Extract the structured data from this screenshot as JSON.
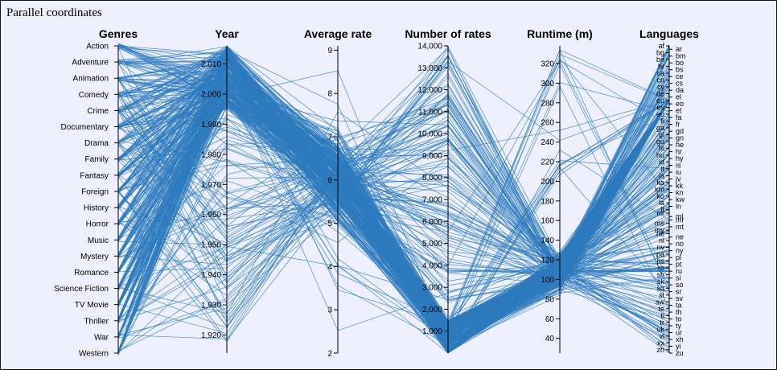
{
  "chart_data": {
    "type": "parallel-coordinates",
    "title": "Parallel coordinates",
    "line_color": "#2e7bbd",
    "axes": [
      {
        "name": "Genres",
        "kind": "categorical",
        "categories": [
          "Action",
          "Adventure",
          "Animation",
          "Comedy",
          "Crime",
          "Documentary",
          "Drama",
          "Family",
          "Fantasy",
          "Foreign",
          "History",
          "Horror",
          "Music",
          "Mystery",
          "Romance",
          "Science Fiction",
          "TV Movie",
          "Thriller",
          "War",
          "Western"
        ]
      },
      {
        "name": "Year",
        "kind": "numeric",
        "domain": [
          1914,
          2016
        ],
        "ticks": [
          1920,
          1930,
          1940,
          1950,
          1960,
          1970,
          1980,
          1990,
          2000,
          2010
        ],
        "tick_labels": [
          "1,920",
          "1,930",
          "1,940",
          "1,950",
          "1,960",
          "1,970",
          "1,980",
          "1,990",
          "2,000",
          "2,010"
        ]
      },
      {
        "name": "Average rate",
        "kind": "numeric",
        "domain": [
          2,
          9.1
        ],
        "ticks": [
          2,
          3,
          4,
          5,
          6,
          7,
          8,
          9
        ],
        "tick_labels": [
          "2",
          "3",
          "4",
          "5",
          "6",
          "7",
          "8",
          "9"
        ]
      },
      {
        "name": "Number of rates",
        "kind": "numeric",
        "domain": [
          0,
          14000
        ],
        "ticks": [
          1000,
          2000,
          3000,
          4000,
          5000,
          6000,
          7000,
          8000,
          9000,
          10000,
          11000,
          12000,
          13000,
          14000
        ],
        "tick_labels": [
          "1,000",
          "2,000",
          "3,000",
          "4,000",
          "5,000",
          "6,000",
          "7,000",
          "8,000",
          "9,000",
          "10,000",
          "11,000",
          "12,000",
          "13,000",
          "14,000"
        ]
      },
      {
        "name": "Runtime (m)",
        "kind": "numeric",
        "domain": [
          25,
          338
        ],
        "ticks": [
          40,
          60,
          80,
          100,
          120,
          140,
          160,
          180,
          200,
          220,
          240,
          260,
          280,
          300,
          320
        ],
        "tick_labels": [
          "40",
          "60",
          "80",
          "100",
          "120",
          "140",
          "160",
          "180",
          "200",
          "220",
          "240",
          "260",
          "280",
          "300",
          "320"
        ]
      },
      {
        "name": "Languages",
        "kind": "categorical",
        "left_labels": [
          "af",
          "bg",
          "bn",
          "br",
          "ca",
          "cn",
          "cy",
          "de",
          "en",
          "es",
          "eu",
          "fi",
          "ga",
          "gl",
          "gu",
          "hi",
          "hu",
          "id",
          "it",
          "ja",
          "ka",
          "km",
          "ko",
          "la",
          "lt",
          "mi",
          "ms",
          "my",
          "nb",
          "nl",
          "nv",
          "pa",
          "ps",
          "ro",
          "sh",
          "sk",
          "sq",
          "st",
          "sw",
          "te",
          "tl",
          "tr",
          "uk",
          "vi",
          "xx",
          "zh"
        ],
        "right_labels": [
          "ar",
          "bm",
          "bo",
          "bs",
          "ce",
          "cs",
          "da",
          "el",
          "eo",
          "et",
          "fa",
          "fr",
          "gd",
          "gn",
          "he",
          "hr",
          "hy",
          "is",
          "iu",
          "jv",
          "kk",
          "kn",
          "kw",
          "ln",
          "ml",
          "mr",
          "mt",
          "ne",
          "no",
          "ny",
          "pl",
          "pt",
          "ru",
          "si",
          "so",
          "sr",
          "sv",
          "ta",
          "th",
          "to",
          "ty",
          "ur",
          "xh",
          "yi",
          "zu"
        ]
      }
    ]
  }
}
